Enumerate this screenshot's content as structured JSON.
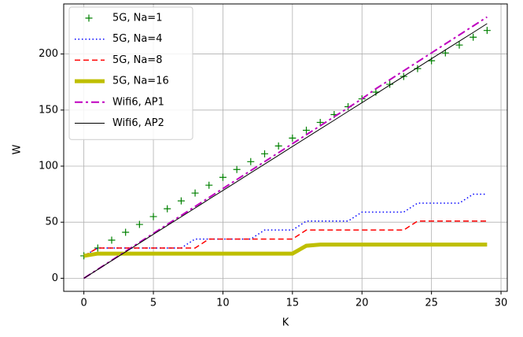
{
  "chart_data": {
    "type": "line",
    "xlabel": "K",
    "ylabel": "W",
    "x": [
      0,
      1,
      2,
      3,
      4,
      5,
      6,
      7,
      8,
      9,
      10,
      11,
      12,
      13,
      14,
      15,
      16,
      17,
      18,
      19,
      20,
      21,
      22,
      23,
      24,
      25,
      26,
      27,
      28,
      29
    ],
    "series": [
      {
        "name": "5G, Na=1",
        "color": "#008000",
        "marker": "+",
        "linestyle": "none",
        "linewidth": 1,
        "values": [
          20,
          27,
          34,
          41,
          48,
          55,
          62,
          69,
          76,
          83,
          90,
          97,
          104,
          111,
          118,
          125,
          132,
          139,
          146,
          153,
          160,
          166,
          173,
          180,
          187,
          194,
          201,
          208,
          215,
          221
        ]
      },
      {
        "name": "5G, Na=4",
        "color": "#0000ff",
        "linestyle": "dotted",
        "linewidth": 1.5,
        "values": [
          20,
          27,
          27,
          27,
          27,
          27,
          27,
          27,
          35,
          35,
          35,
          35,
          35,
          43,
          43,
          43,
          51,
          51,
          51,
          51,
          59,
          59,
          59,
          59,
          67,
          67,
          67,
          67,
          75,
          75
        ]
      },
      {
        "name": "5G, Na=8",
        "color": "#ff0000",
        "linestyle": "dashed",
        "linewidth": 1.5,
        "values": [
          20,
          27,
          27,
          27,
          27,
          27,
          27,
          27,
          27,
          35,
          35,
          35,
          35,
          35,
          35,
          35,
          43,
          43,
          43,
          43,
          43,
          43,
          43,
          43,
          51,
          51,
          51,
          51,
          51,
          51
        ]
      },
      {
        "name": "5G, Na=16",
        "color": "#bfbf00",
        "linestyle": "solid",
        "linewidth": 5,
        "values": [
          20,
          22,
          22,
          22,
          22,
          22,
          22,
          22,
          22,
          22,
          22,
          22,
          22,
          22,
          22,
          22,
          29,
          30,
          30,
          30,
          30,
          30,
          30,
          30,
          30,
          30,
          30,
          30,
          30,
          30
        ]
      },
      {
        "name": "Wifi6, AP1",
        "color": "#bf00bf",
        "linestyle": "dashdot",
        "linewidth": 2,
        "values": [
          0,
          8,
          16,
          24,
          32,
          40,
          48,
          56,
          64,
          72,
          80,
          88,
          96,
          104,
          112,
          120,
          128,
          136,
          144,
          152,
          160,
          169,
          177,
          185,
          193,
          201,
          209,
          217,
          225,
          233
        ]
      },
      {
        "name": "Wifi6, AP2",
        "color": "#000000",
        "linestyle": "solid",
        "linewidth": 1,
        "values": [
          0,
          7.8,
          15.7,
          23.5,
          31.3,
          39.2,
          47,
          54.8,
          62.6,
          70.5,
          78.3,
          86.1,
          94,
          101.8,
          109.6,
          117.5,
          125.3,
          133.1,
          140.9,
          148.8,
          156.6,
          164.4,
          172.3,
          180.1,
          187.9,
          195.8,
          203.6,
          211.4,
          219.2,
          227.1
        ]
      }
    ],
    "xlim": [
      -1.45,
      30.45
    ],
    "xticks": [
      0,
      5,
      10,
      15,
      20,
      25,
      30
    ],
    "ylim": [
      -11.65,
      244.65
    ],
    "yticks": [
      0,
      50,
      100,
      150,
      200
    ],
    "grid": true,
    "legend": "upper-left"
  }
}
